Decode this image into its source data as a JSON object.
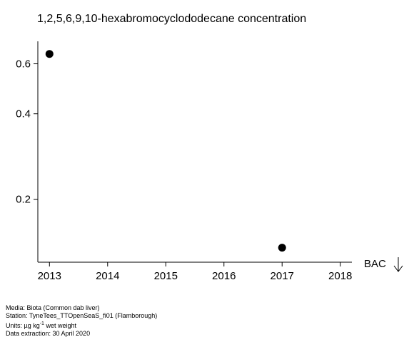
{
  "chart_data": {
    "type": "scatter",
    "title": "1,2,5,6,9,10-hexabromocyclododecane concentration",
    "xlabel": "",
    "ylabel": "",
    "scale": "log",
    "x_ticks": [
      "2013",
      "2014",
      "2015",
      "2016",
      "2017",
      "2018"
    ],
    "y_ticks": [
      0.2,
      0.4,
      0.6
    ],
    "xlim": [
      2012.8,
      2018.2
    ],
    "ylim": [
      0.12,
      0.72
    ],
    "grid": false,
    "legend": "none",
    "marker_color": "#000000",
    "points": [
      {
        "x": 2013,
        "y": 0.65
      },
      {
        "x": 2017,
        "y": 0.135
      }
    ],
    "annotations": [
      {
        "text": "BAC",
        "arrow": "down"
      }
    ]
  },
  "footer": {
    "media": "Media: Biota (Common dab liver)",
    "station": "Station: TyneTees_TTOpenSeaS_fi01 (Flamborough)",
    "units_prefix": "Units:  µg kg",
    "units_sup": "-1",
    "units_suffix": " wet weight",
    "extraction": "Data extraction: 30 April 2020"
  }
}
